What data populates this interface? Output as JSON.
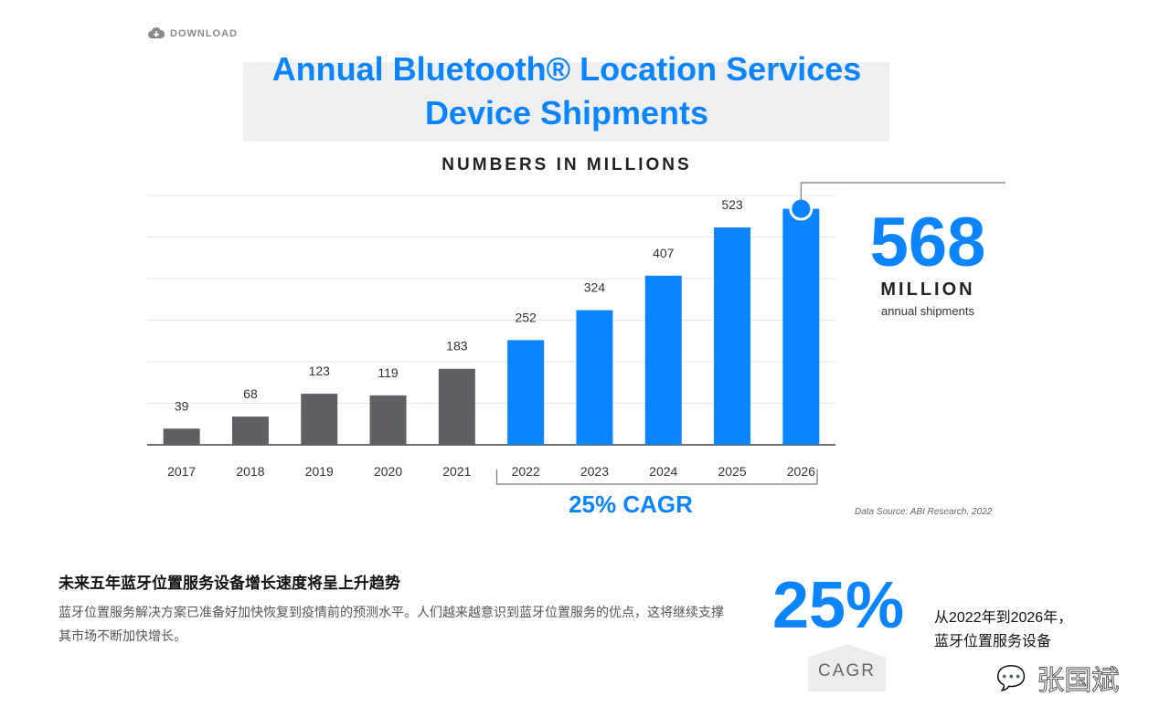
{
  "download": "DOWNLOAD",
  "colors": {
    "accent": "#0a84ff",
    "historic": "#5f6064"
  },
  "highlight": {
    "value": "568",
    "unit": "MILLION",
    "caption": "annual shipments"
  },
  "cagr_label": "25% CAGR",
  "source": "Data Source: ABI Research, 2022",
  "article": {
    "heading": "未来五年蓝牙位置服务设备增长速度将呈上升趋势",
    "body": "蓝牙位置服务解决方案已准备好加快恢复到疫情前的预测水平。人们越来越意识到蓝牙位置服务的优点，这将继续支撑其市场不断加快增长。"
  },
  "stat": {
    "value": "25%",
    "label": "CAGR",
    "desc1": "从2022年到2026年，",
    "desc2": "蓝牙位置服务设备"
  },
  "watermark": "张国斌",
  "chart_data": {
    "type": "bar",
    "title": "Annual Bluetooth® Location Services Device Shipments",
    "subtitle": "NUMBERS IN MILLIONS",
    "categories": [
      "2017",
      "2018",
      "2019",
      "2020",
      "2021",
      "2022",
      "2023",
      "2024",
      "2025",
      "2026"
    ],
    "values": [
      39,
      68,
      123,
      119,
      183,
      252,
      324,
      407,
      523,
      568
    ],
    "data_labels": [
      "39",
      "68",
      "123",
      "119",
      "183",
      "252",
      "324",
      "407",
      "523",
      ""
    ],
    "forecast_from": "2022",
    "ylim": [
      0,
      600
    ],
    "grid": true,
    "xlabel": "",
    "ylabel": ""
  }
}
